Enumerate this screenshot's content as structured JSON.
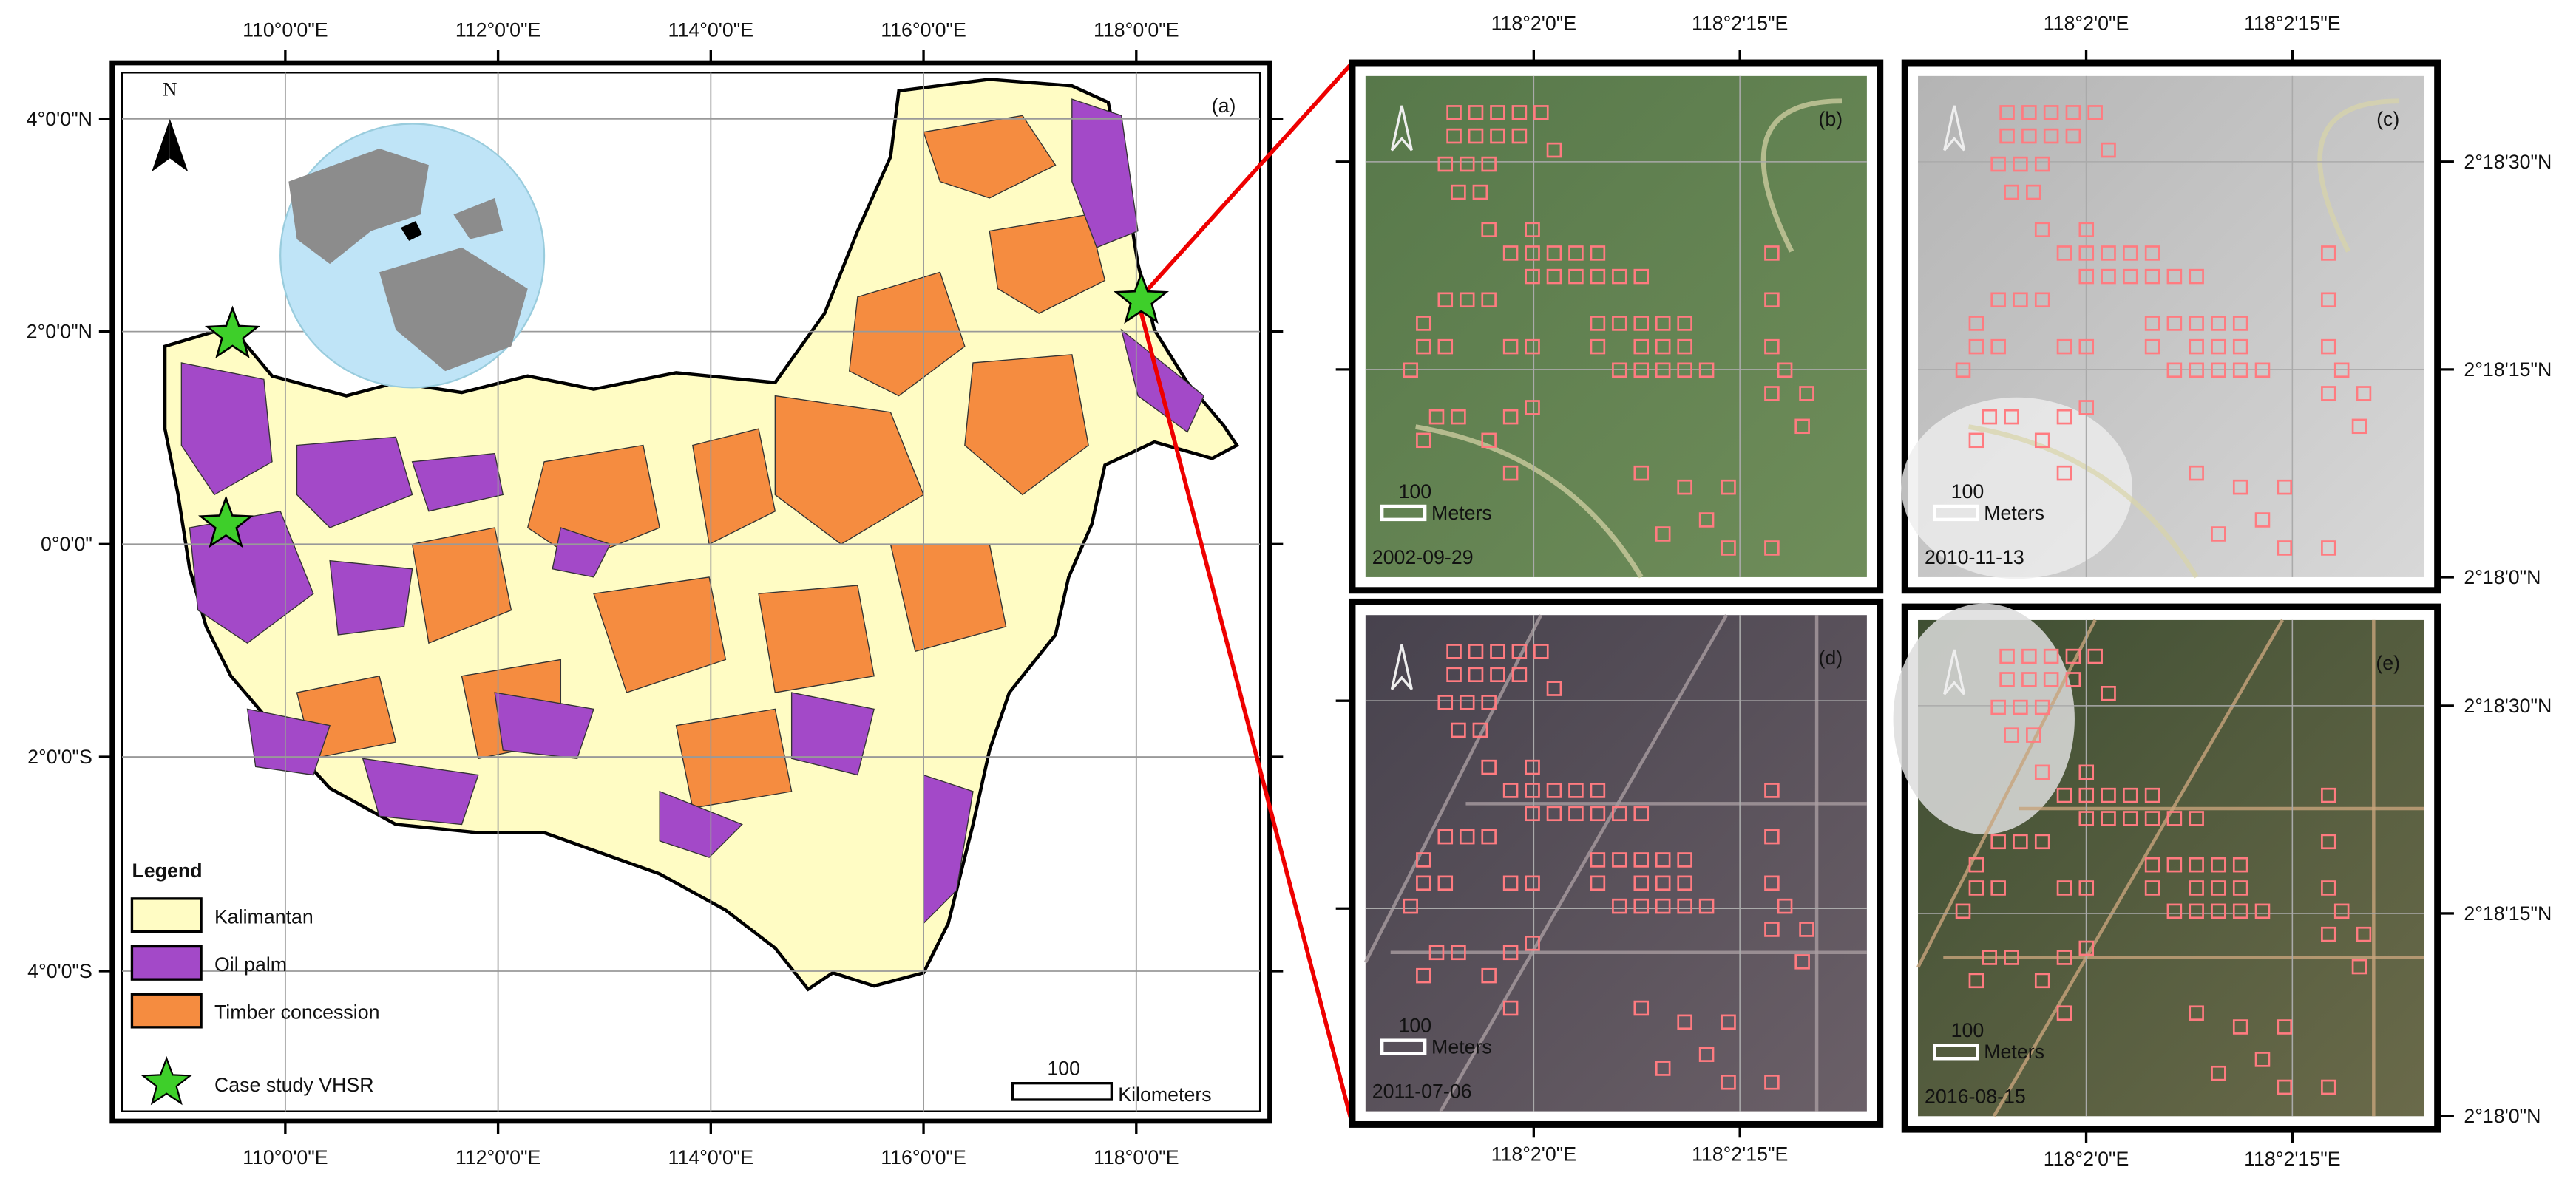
{
  "map": {
    "panel_label": "(a)",
    "lon_labels": [
      "110°0'0\"E",
      "112°0'0\"E",
      "114°0'0\"E",
      "116°0'0\"E",
      "118°0'0\"E"
    ],
    "lat_labels": [
      "4°0'0\"N",
      "2°0'0\"N",
      "0°0'0\"",
      "2°0'0\"S",
      "4°0'0\"S"
    ],
    "north": "N",
    "legend": {
      "title": "Legend",
      "items": [
        "Kalimantan",
        "Oil palm",
        "Timber concession",
        "Case study VHSR"
      ]
    },
    "scale": {
      "value": 100,
      "unit": "Kilometers"
    }
  },
  "insets": [
    {
      "label": "(b)",
      "date": "2002-09-29"
    },
    {
      "label": "(c)",
      "date": "2010-11-13"
    },
    {
      "label": "(d)",
      "date": "2011-07-06"
    },
    {
      "label": "(e)",
      "date": "2016-08-15"
    }
  ],
  "inset_axes": {
    "lon_labels": [
      "118°2'0\"E",
      "118°2'15\"E"
    ],
    "lat_labels": [
      "2°18'30\"N",
      "2°18'15\"N",
      "2°18'0\"N"
    ],
    "scale": {
      "value": 100,
      "unit": "Meters"
    }
  }
}
